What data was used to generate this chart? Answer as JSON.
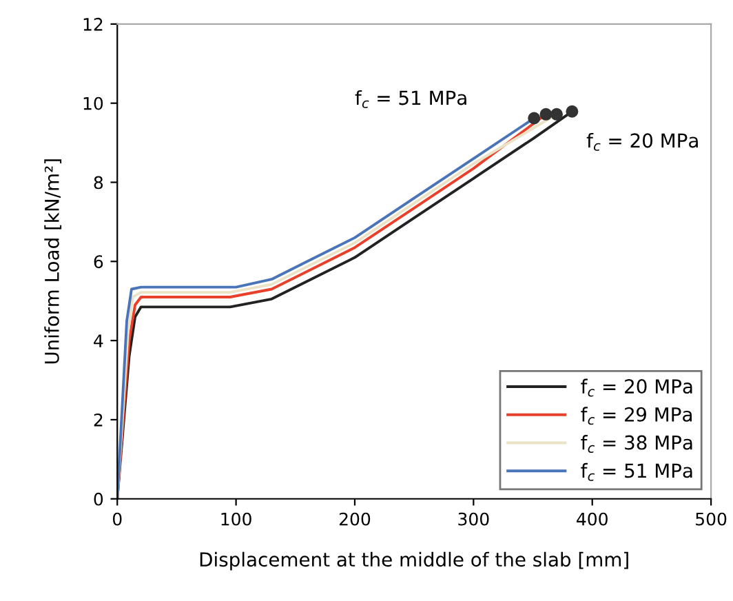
{
  "chart_data": {
    "type": "line",
    "xlabel": "Displacement at the middle of the slab [mm]",
    "ylabel": "Uniform Load [kN/m²]",
    "xlim": [
      0,
      500
    ],
    "ylim": [
      0,
      12
    ],
    "xticks": [
      0,
      100,
      200,
      300,
      400,
      500
    ],
    "yticks": [
      0,
      2,
      4,
      6,
      8,
      10,
      12
    ],
    "grid": false,
    "legend": "bottom right",
    "line_style": "solid",
    "series": [
      {
        "name": "f$_{c}$ = 20 MPa",
        "color": "#222222",
        "x": [
          0,
          10,
          15,
          20,
          95,
          130,
          160,
          200,
          250,
          300,
          350,
          383
        ],
        "values": [
          0,
          3.6,
          4.6,
          4.85,
          4.85,
          5.05,
          5.5,
          6.1,
          7.1,
          8.1,
          9.1,
          9.79
        ]
      },
      {
        "name": "f$_{c}$ = 29 MPa",
        "color": "#e8402a",
        "x": [
          0,
          10,
          15,
          20,
          95,
          130,
          160,
          200,
          250,
          300,
          361
        ],
        "values": [
          0,
          4.0,
          4.9,
          5.1,
          5.1,
          5.3,
          5.75,
          6.35,
          7.35,
          8.35,
          9.72
        ]
      },
      {
        "name": "f$_{c}$ = 38 MPa",
        "color": "#ece3c6",
        "x": [
          0,
          9,
          13,
          20,
          95,
          130,
          160,
          200,
          250,
          300,
          370
        ],
        "values": [
          0,
          4.2,
          5.1,
          5.22,
          5.22,
          5.42,
          5.87,
          6.47,
          7.47,
          8.47,
          9.72
        ]
      },
      {
        "name": "f$_{c}$ = 51 MPa",
        "color": "#4a74b8",
        "x": [
          0,
          8,
          12,
          20,
          100,
          130,
          160,
          200,
          250,
          300,
          351
        ],
        "values": [
          0,
          4.5,
          5.3,
          5.35,
          5.35,
          5.55,
          6.0,
          6.6,
          7.6,
          8.6,
          9.62
        ]
      },
      {
        "type": "scatter",
        "marker": "circle",
        "color": "#333333",
        "x": [
          351,
          361,
          370,
          383
        ],
        "values": [
          9.62,
          9.72,
          9.72,
          9.79
        ]
      }
    ],
    "annotations": [
      "f$_{c}$ = 51 MPa",
      "f$_{c}$ = 20 MPa"
    ]
  }
}
